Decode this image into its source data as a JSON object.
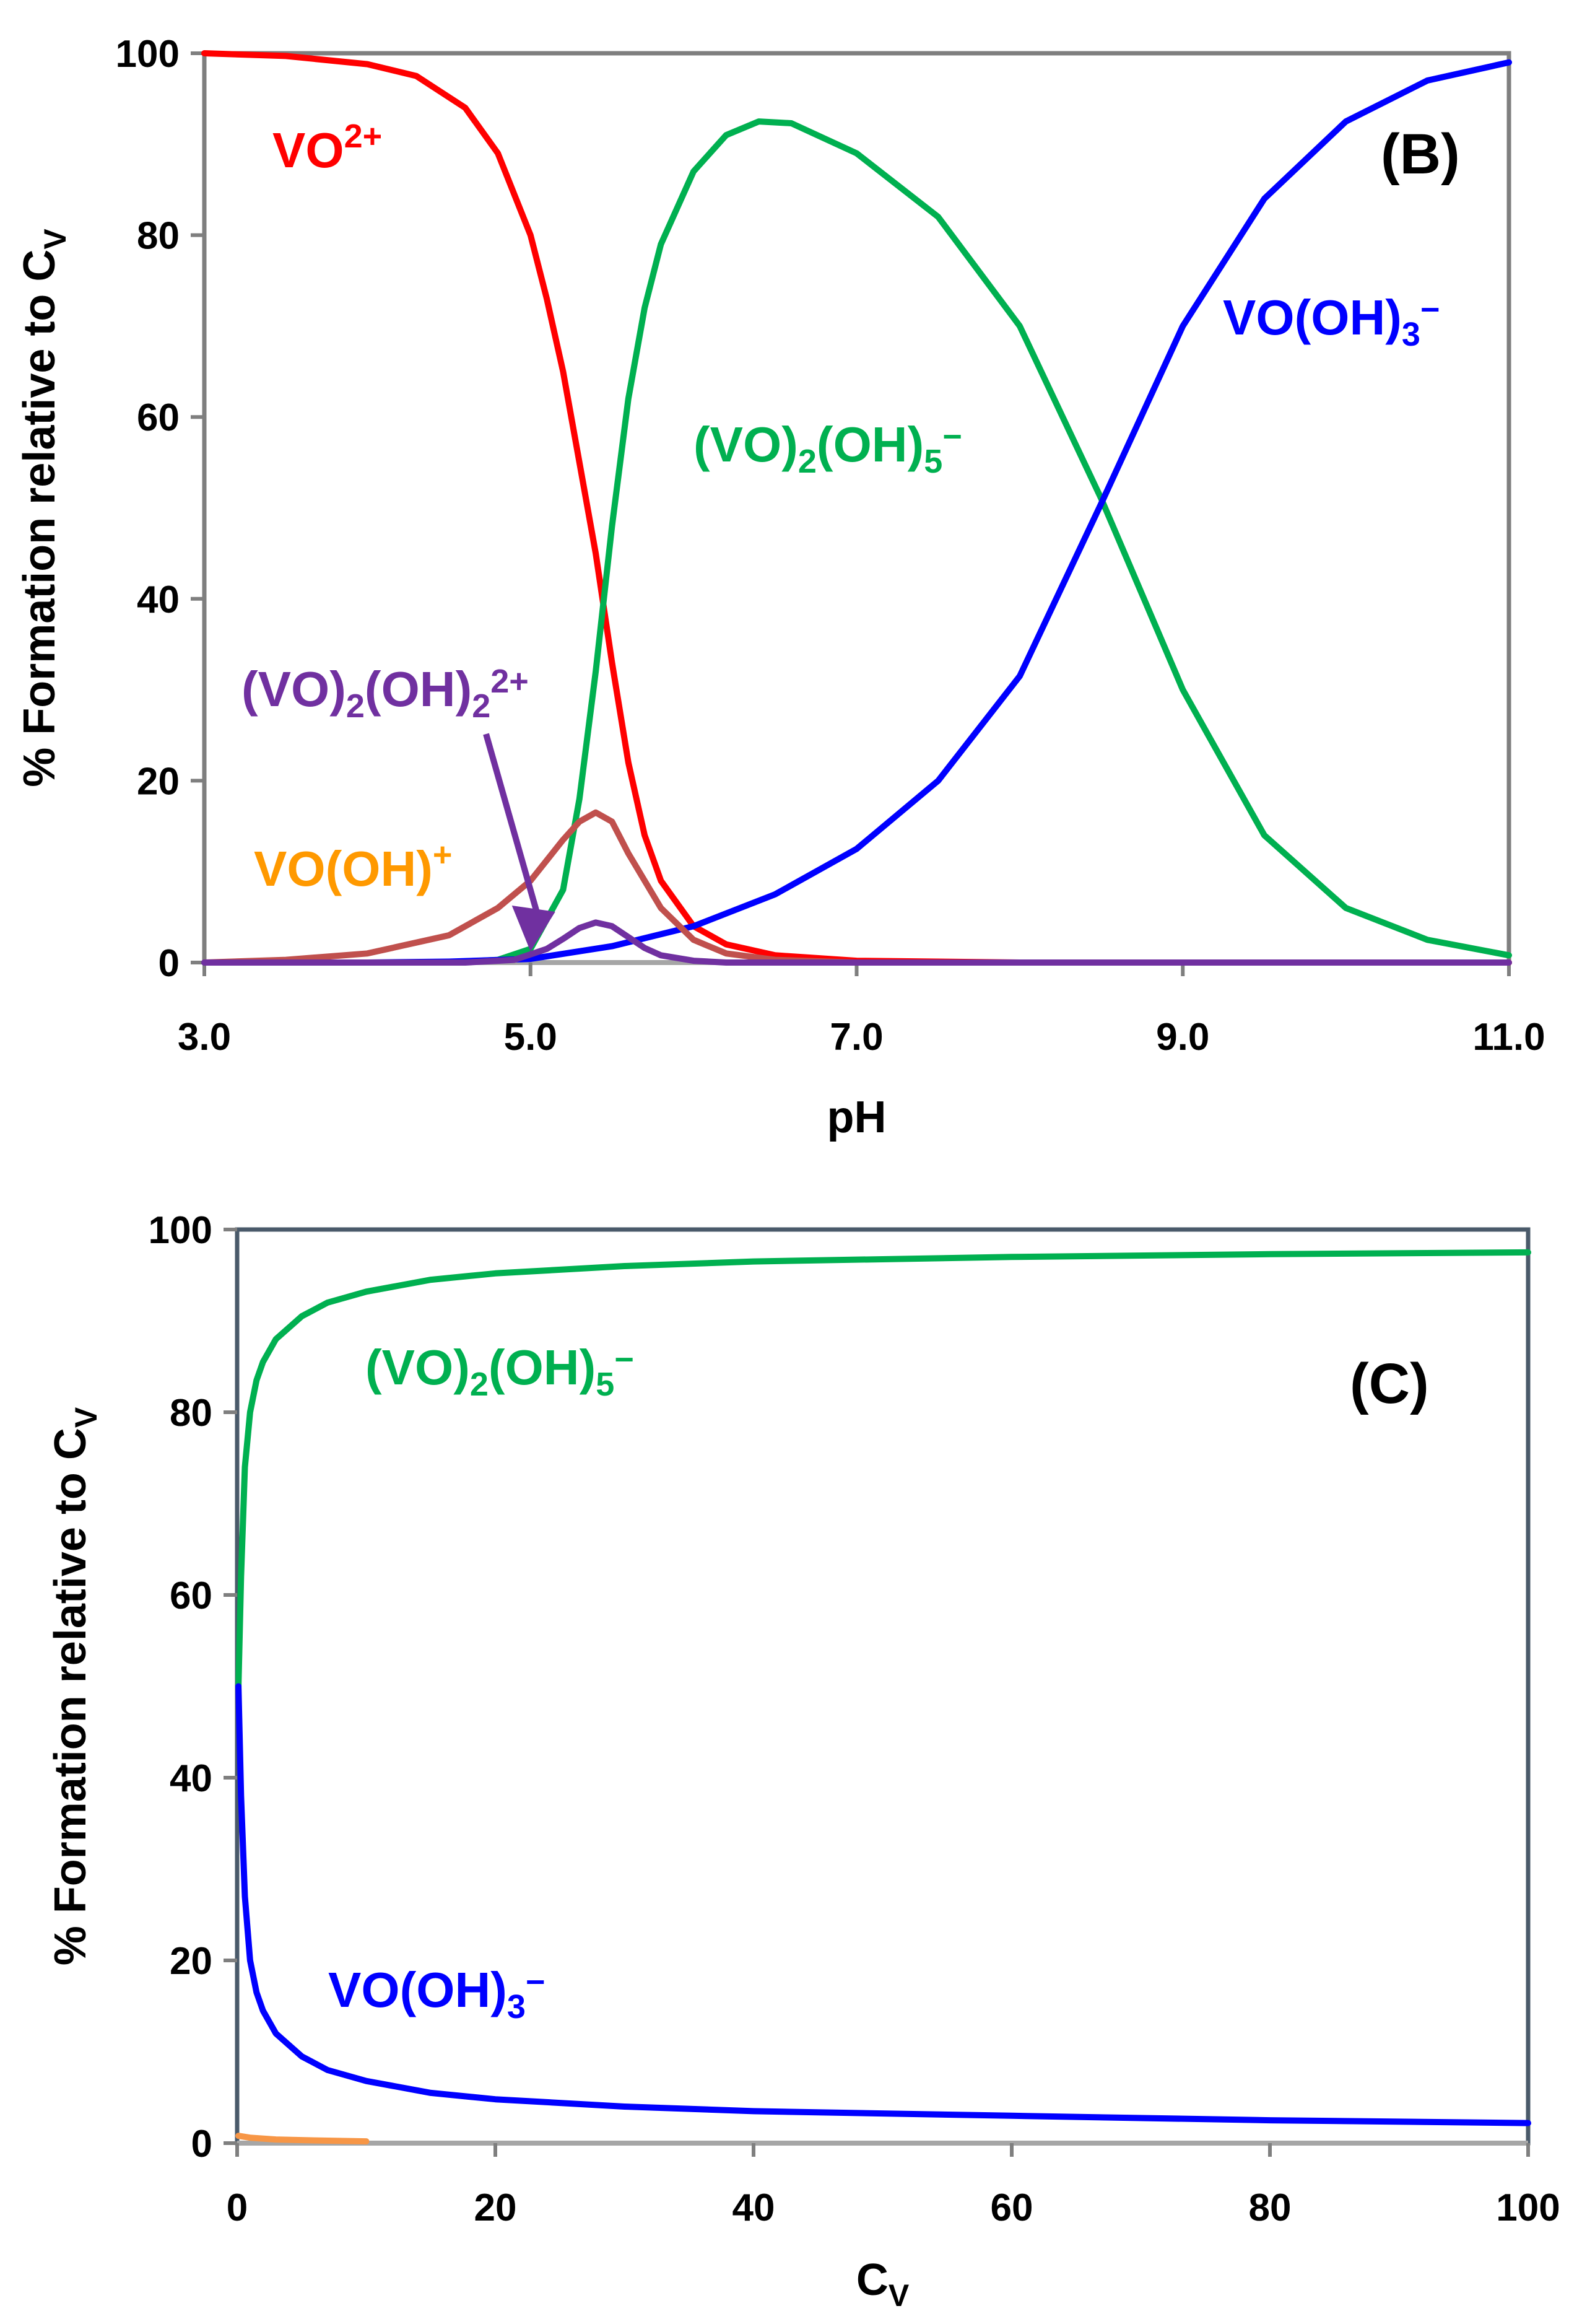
{
  "chart_data": [
    {
      "type": "line",
      "panel_label": "(B)",
      "xlabel": "pH",
      "ylabel": {
        "main": "% Formation relative to C",
        "sub": "V"
      },
      "xlim": [
        3.0,
        11.0
      ],
      "ylim": [
        0,
        100
      ],
      "xticks": [
        "3.0",
        "5.0",
        "7.0",
        "9.0",
        "11.0"
      ],
      "xtick_values": [
        3,
        5,
        7,
        9,
        11
      ],
      "yticks": [
        "0",
        "20",
        "40",
        "60",
        "80",
        "100"
      ],
      "ytick_values": [
        0,
        20,
        40,
        60,
        80,
        100
      ],
      "grid": false,
      "series": [
        {
          "key": "vo2",
          "color": "#ff0000",
          "label": {
            "main": "VO",
            "sup": "2+"
          },
          "x": [
            3.0,
            3.5,
            4.0,
            4.3,
            4.6,
            4.8,
            5.0,
            5.1,
            5.2,
            5.3,
            5.4,
            5.5,
            5.6,
            5.7,
            5.8,
            6.0,
            6.2,
            6.5,
            7.0,
            8.0,
            11.0
          ],
          "y": [
            100,
            99.7,
            98.8,
            97.5,
            94,
            89,
            80,
            73,
            65,
            55,
            45,
            33,
            22,
            14,
            9,
            4,
            2,
            0.8,
            0.2,
            0,
            0
          ]
        },
        {
          "key": "dimer5",
          "color": "#00b050",
          "label": {
            "parts": [
              "(VO)",
              "2",
              "(OH)",
              "5",
              "−"
            ]
          },
          "x": [
            3.0,
            4.5,
            4.8,
            5.0,
            5.2,
            5.3,
            5.4,
            5.5,
            5.6,
            5.7,
            5.8,
            6.0,
            6.2,
            6.4,
            6.6,
            7.0,
            7.5,
            8.0,
            8.5,
            9.0,
            9.5,
            10.0,
            10.5,
            11.0
          ],
          "y": [
            0,
            0,
            0.3,
            1.5,
            8,
            18,
            32,
            48,
            62,
            72,
            79,
            87,
            91,
            92.5,
            92.3,
            89,
            82,
            70,
            51,
            30,
            14,
            6,
            2.5,
            0.8
          ]
        },
        {
          "key": "vooh3",
          "color": "#0000ff",
          "label": {
            "parts": [
              "VO(OH)",
              "3",
              "−"
            ]
          },
          "x": [
            3.0,
            4.0,
            4.5,
            5.0,
            5.5,
            6.0,
            6.5,
            7.0,
            7.5,
            8.0,
            8.5,
            9.0,
            9.5,
            10.0,
            10.5,
            11.0
          ],
          "y": [
            0,
            0,
            0.1,
            0.4,
            1.8,
            4,
            7.5,
            12.5,
            20,
            31.5,
            50.5,
            70,
            84,
            92.5,
            97,
            99
          ]
        },
        {
          "key": "voohplus",
          "color": "#c0504d",
          "label": {
            "main": "VO(OH)",
            "sup": "+"
          },
          "label_color": "#ff9900",
          "x": [
            3.0,
            3.5,
            4.0,
            4.5,
            4.8,
            5.0,
            5.2,
            5.3,
            5.4,
            5.5,
            5.6,
            5.8,
            6.0,
            6.2,
            6.5,
            7.0,
            11.0
          ],
          "y": [
            0,
            0.3,
            1,
            3,
            6,
            9,
            13.5,
            15.5,
            16.5,
            15.5,
            12,
            6,
            2.5,
            1,
            0.3,
            0,
            0
          ]
        },
        {
          "key": "dimer2",
          "color": "#7030a0",
          "label": {
            "parts": [
              "(VO)",
              "2",
              "(OH)",
              "2",
              "2+"
            ]
          },
          "x": [
            3.0,
            4.6,
            4.9,
            5.1,
            5.2,
            5.3,
            5.4,
            5.5,
            5.6,
            5.7,
            5.8,
            6.0,
            6.2,
            11.0
          ],
          "y": [
            0,
            0,
            0.3,
            1.5,
            2.6,
            3.8,
            4.4,
            4,
            2.8,
            1.6,
            0.8,
            0.2,
            0,
            0
          ]
        }
      ],
      "annotations": [
        {
          "type": "arrow",
          "target_series": "dimer2",
          "to": [
            5.0,
            1.5
          ],
          "color": "#7030a0"
        }
      ]
    },
    {
      "type": "line",
      "panel_label": "(C)",
      "xlabel": {
        "main": "C",
        "sub": "V"
      },
      "ylabel": {
        "main": "% Formation relative to C",
        "sub": "V"
      },
      "xlim": [
        0,
        100
      ],
      "ylim": [
        0,
        100
      ],
      "xticks": [
        "0",
        "20",
        "40",
        "60",
        "80",
        "100"
      ],
      "xtick_values": [
        0,
        20,
        40,
        60,
        80,
        100
      ],
      "yticks": [
        "0",
        "20",
        "40",
        "60",
        "80",
        "100"
      ],
      "ytick_values": [
        0,
        20,
        40,
        60,
        80,
        100
      ],
      "grid": false,
      "series": [
        {
          "key": "dimer5",
          "color": "#00b050",
          "label": {
            "parts": [
              "(VO)",
              "2",
              "(OH)",
              "5",
              "−"
            ]
          },
          "x": [
            0.1,
            0.3,
            0.6,
            1,
            1.5,
            2,
            3,
            5,
            7,
            10,
            15,
            20,
            30,
            40,
            60,
            80,
            100
          ],
          "y": [
            50,
            62,
            74,
            80,
            83.5,
            85.5,
            88,
            90.5,
            92,
            93.2,
            94.5,
            95.2,
            96,
            96.5,
            97,
            97.3,
            97.5
          ]
        },
        {
          "key": "vooh3",
          "color": "#0000ff",
          "label": {
            "parts": [
              "VO(OH)",
              "3",
              "−"
            ]
          },
          "x": [
            0.1,
            0.3,
            0.6,
            1,
            1.5,
            2,
            3,
            5,
            7,
            10,
            15,
            20,
            30,
            40,
            60,
            80,
            100
          ],
          "y": [
            50,
            38,
            27,
            20,
            16.5,
            14.5,
            12,
            9.5,
            8,
            6.8,
            5.5,
            4.8,
            4,
            3.5,
            3,
            2.5,
            2.2
          ]
        },
        {
          "key": "voohplus",
          "color": "#f79646",
          "x": [
            0.1,
            1,
            3,
            6,
            10
          ],
          "y": [
            0.8,
            0.6,
            0.4,
            0.3,
            0.2
          ]
        }
      ]
    }
  ]
}
